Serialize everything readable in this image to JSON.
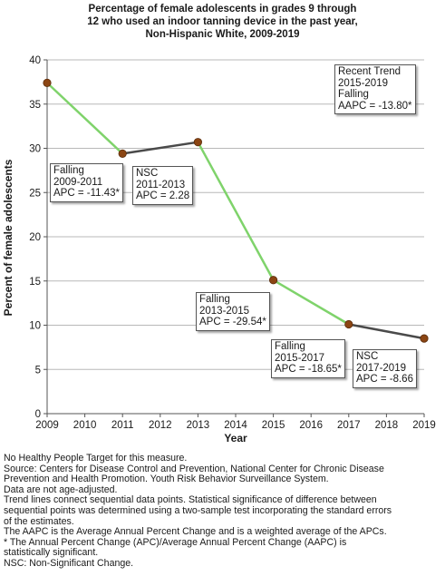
{
  "title_lines": [
    "Percentage of female adolescents in grades 9 through",
    "12 who used an indoor tanning device in the past year,",
    "Non-Hispanic White,  2009-2019"
  ],
  "colors": {
    "significant_segment": "#7fd36b",
    "nonsignificant_segment": "#4a4a4a",
    "point_fill": "#8b4513",
    "gridline": "#b8b8b8",
    "axis": "#555555"
  },
  "chart_data": {
    "type": "line",
    "title": "Percentage of female adolescents in grades 9 through 12 who used an indoor tanning device in the past year, Non-Hispanic White,  2009-2019",
    "xlabel": "Year",
    "ylabel": "Percent of female adolescents",
    "xlim": [
      2009,
      2019
    ],
    "ylim": [
      0,
      40
    ],
    "x_ticks": [
      "2009",
      "2010",
      "2011",
      "2012",
      "2013",
      "2014",
      "2015",
      "2016",
      "2017",
      "2018",
      "2019"
    ],
    "y_ticks": [
      "0",
      "5",
      "10",
      "15",
      "20",
      "25",
      "30",
      "35",
      "40"
    ],
    "grid": "horizontal",
    "series": [
      {
        "x": [
          2009,
          2011,
          2013,
          2015,
          2017,
          2019
        ],
        "y": [
          37.4,
          29.4,
          30.7,
          15.1,
          10.1,
          8.5
        ]
      }
    ],
    "segments": [
      {
        "from": 2009,
        "to": 2011,
        "significant": true
      },
      {
        "from": 2011,
        "to": 2013,
        "significant": false
      },
      {
        "from": 2013,
        "to": 2015,
        "significant": true
      },
      {
        "from": 2015,
        "to": 2017,
        "significant": true
      },
      {
        "from": 2017,
        "to": 2019,
        "significant": false
      }
    ],
    "annotations": [
      {
        "lines": [
          "Recent Trend",
          "2015-2019",
          "Falling",
          "AAPC = -13.80*"
        ]
      },
      {
        "lines": [
          "Falling",
          "2009-2011",
          "APC = -11.43*"
        ]
      },
      {
        "lines": [
          "NSC",
          "2011-2013",
          "APC =  2.28"
        ]
      },
      {
        "lines": [
          "Falling",
          "2013-2015",
          "APC = -29.54*"
        ]
      },
      {
        "lines": [
          "Falling",
          "2015-2017",
          "APC = -18.65*"
        ]
      },
      {
        "lines": [
          "NSC",
          "2017-2019",
          "APC = -8.66"
        ]
      }
    ]
  },
  "footnotes": [
    "No Healthy People Target for this measure.",
    "Source: Centers for Disease Control and Prevention, National Center for Chronic Disease",
    "Prevention and Health Promotion. Youth Risk Behavior Surveillance System.",
    "Data are not age-adjusted.",
    "Trend lines connect sequential data points. Statistical significance of difference between",
    "sequential points was determined using a two-sample test incorporating the standard errors",
    "of the estimates.",
    "The AAPC is the Average Annual Percent Change and is a weighted average of the APCs.",
    "* The Annual Percent Change (APC)/Average Annual Percent Change (AAPC) is",
    "statistically significant.",
    "NSC: Non-Significant Change."
  ]
}
